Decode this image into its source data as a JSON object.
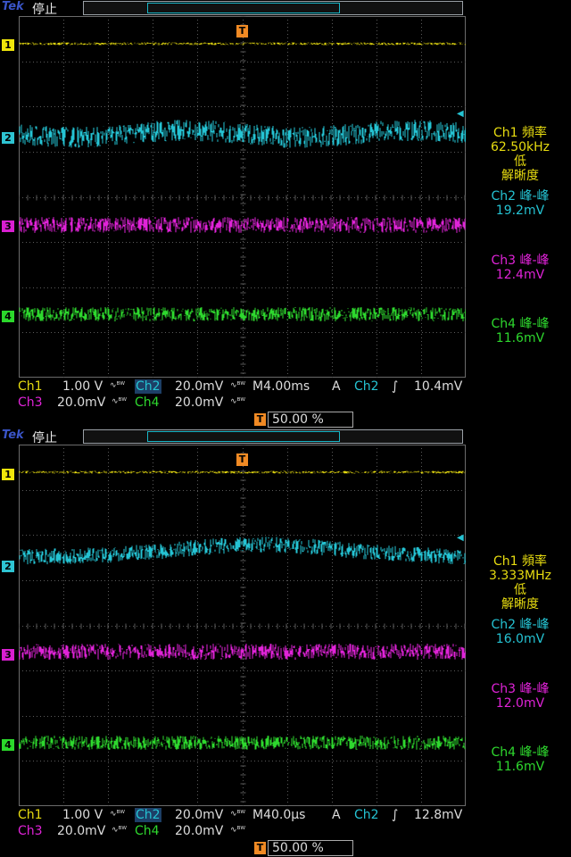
{
  "screens": [
    {
      "logo": "Tek",
      "state": "停止",
      "channels": [
        "1",
        "2",
        "3",
        "4"
      ],
      "trigger_marker": "T",
      "measurements": [
        {
          "line1": "Ch1 頻率",
          "line2": "62.50kHz",
          "line3": "低",
          "line4": "解晰度"
        },
        {
          "line1": "Ch2 峰-峰",
          "line2": "19.2mV"
        },
        {
          "line1": "Ch3 峰-峰",
          "line2": "12.4mV"
        },
        {
          "line1": "Ch4 峰-峰",
          "line2": "11.6mV"
        }
      ],
      "status": {
        "ch1_label": "Ch1",
        "ch1_scale": "1.00 V",
        "ch2_label": "Ch2",
        "ch2_scale": "20.0mV",
        "ch3_label": "Ch3",
        "ch3_scale": "20.0mV",
        "ch4_label": "Ch4",
        "ch4_scale": "20.0mV",
        "timebase": "M4.00ms",
        "trig_mode": "A",
        "trig_src": "Ch2",
        "trig_slope": "∫",
        "trig_level": "10.4mV",
        "trig_pos": "50.00 %",
        "bw_symbol": "∿ᴮᵂ"
      }
    },
    {
      "logo": "Tek",
      "state": "停止",
      "channels": [
        "1",
        "2",
        "3",
        "4"
      ],
      "trigger_marker": "T",
      "measurements": [
        {
          "line1": "Ch1 頻率",
          "line2": "3.333MHz",
          "line3": "低",
          "line4": "解晰度"
        },
        {
          "line1": "Ch2 峰-峰",
          "line2": "16.0mV"
        },
        {
          "line1": "Ch3 峰-峰",
          "line2": "12.0mV"
        },
        {
          "line1": "Ch4 峰-峰",
          "line2": "11.6mV"
        }
      ],
      "status": {
        "ch1_label": "Ch1",
        "ch1_scale": "1.00 V",
        "ch2_label": "Ch2",
        "ch2_scale": "20.0mV",
        "ch3_label": "Ch3",
        "ch3_scale": "20.0mV",
        "ch4_label": "Ch4",
        "ch4_scale": "20.0mV",
        "timebase": "M40.0µs",
        "trig_mode": "A",
        "trig_src": "Ch2",
        "trig_slope": "∫",
        "trig_level": "12.8mV",
        "trig_pos": "50.00 %",
        "bw_symbol": "∿ᴮᵂ"
      }
    }
  ],
  "colors": {
    "ch1": "#e7dc10",
    "ch2": "#25c3d3",
    "ch3": "#e023d8",
    "ch4": "#2ed82e",
    "trigger": "#f08a24"
  }
}
